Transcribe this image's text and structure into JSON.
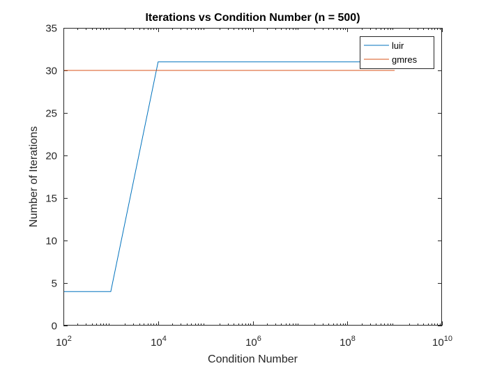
{
  "chart_data": {
    "type": "line",
    "title": "Iterations vs Condition Number (n = 500)",
    "xlabel": "Condition Number",
    "ylabel": "Number of Iterations",
    "x_scale": "log",
    "xlim": [
      100,
      10000000000
    ],
    "ylim": [
      0,
      35
    ],
    "x_ticks": [
      {
        "value": 100,
        "base": "10",
        "exp": "2"
      },
      {
        "value": 10000,
        "base": "10",
        "exp": "4"
      },
      {
        "value": 1000000,
        "base": "10",
        "exp": "6"
      },
      {
        "value": 100000000,
        "base": "10",
        "exp": "8"
      },
      {
        "value": 10000000000,
        "base": "10",
        "exp": "10"
      }
    ],
    "y_ticks": [
      0,
      5,
      10,
      15,
      20,
      25,
      30,
      35
    ],
    "grid": false,
    "legend_position": "top-right",
    "series": [
      {
        "name": "luir",
        "color": "#0072BD",
        "x": [
          100,
          1000,
          10000,
          100000,
          1000000,
          10000000,
          100000000,
          1000000000
        ],
        "y": [
          4,
          4,
          31,
          31,
          31,
          31,
          31,
          31
        ]
      },
      {
        "name": "gmres",
        "color": "#D95319",
        "x": [
          100,
          1000,
          10000,
          100000,
          1000000,
          10000000,
          100000000,
          1000000000
        ],
        "y": [
          30,
          30,
          30,
          30,
          30,
          30,
          30,
          30
        ]
      }
    ]
  }
}
